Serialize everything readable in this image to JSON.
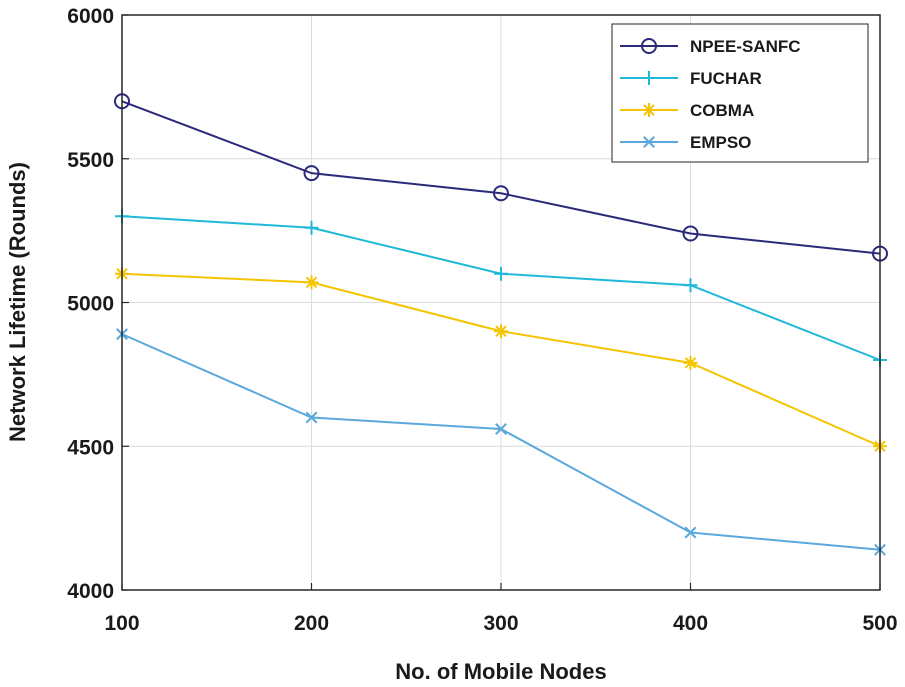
{
  "chart_data": {
    "type": "line",
    "title": "",
    "xlabel": "No. of Mobile Nodes",
    "ylabel": "Network Lifetime (Rounds)",
    "x": [
      100,
      200,
      300,
      400,
      500
    ],
    "xticks": [
      "100",
      "200",
      "300",
      "400",
      "500"
    ],
    "yticks": [
      "4000",
      "4500",
      "5000",
      "5500",
      "6000"
    ],
    "xlim": [
      100,
      500
    ],
    "ylim": [
      4000,
      6000
    ],
    "grid": true,
    "legend_position": "top-right",
    "series": [
      {
        "name": "NPEE-SANFC",
        "values": [
          5700,
          5450,
          5380,
          5240,
          5170
        ],
        "color": "#2b2a7a",
        "marker": "circle"
      },
      {
        "name": "FUCHAR",
        "values": [
          5300,
          5260,
          5100,
          5060,
          4800
        ],
        "color": "#1fb8d8",
        "marker": "plus"
      },
      {
        "name": "COBMA",
        "values": [
          5100,
          5070,
          4900,
          4790,
          4500
        ],
        "color": "#f5c400",
        "marker": "asterisk"
      },
      {
        "name": "EMPSO",
        "values": [
          4890,
          4600,
          4560,
          4200,
          4140
        ],
        "color": "#5aa8dc",
        "marker": "cross"
      }
    ]
  }
}
